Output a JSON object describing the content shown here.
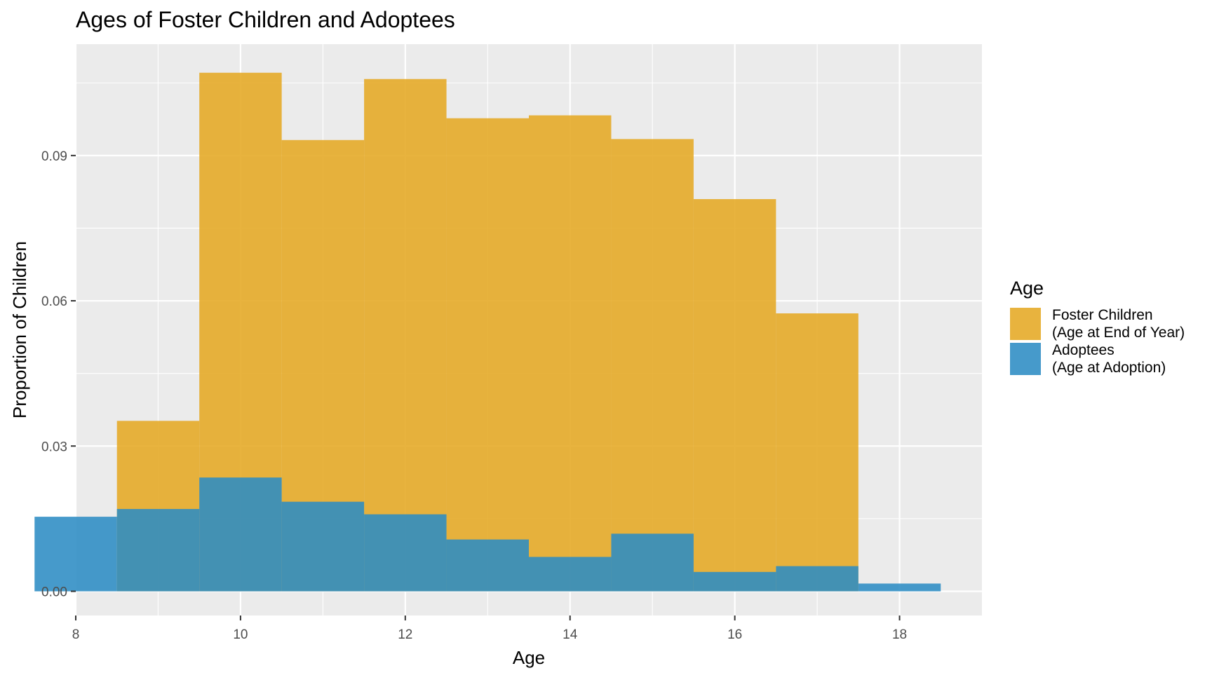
{
  "chart_data": {
    "type": "bar",
    "title": "Ages of Foster Children and Adoptees",
    "xlabel": "Age",
    "ylabel": "Proportion of Children",
    "xlim": [
      8,
      19
    ],
    "ylim": [
      -0.005,
      0.113
    ],
    "x_ticks": [
      "8",
      "10",
      "12",
      "14",
      "16",
      "18"
    ],
    "y_ticks": [
      "0.00",
      "0.03",
      "0.06",
      "0.09"
    ],
    "grid": true,
    "legend": {
      "title": "Age",
      "position": "right",
      "entries": [
        {
          "label": "Foster Children\n(Age at End of Year)",
          "color": "#e5a823"
        },
        {
          "label": "Adoptees\n(Age at Adoption)",
          "color": "#2c8cc4"
        }
      ]
    },
    "series": [
      {
        "name": "Foster Children\n(Age at End of Year)",
        "color": "#e5a823",
        "bins": [
          [
            8.5,
            9.5,
            0.0352
          ],
          [
            9.5,
            10.5,
            0.1071
          ],
          [
            10.5,
            11.5,
            0.0932
          ],
          [
            11.5,
            12.5,
            0.1058
          ],
          [
            12.5,
            13.5,
            0.0977
          ],
          [
            13.5,
            14.5,
            0.0983
          ],
          [
            14.5,
            15.5,
            0.0934
          ],
          [
            15.5,
            16.5,
            0.081
          ],
          [
            16.5,
            17.5,
            0.0574
          ]
        ]
      },
      {
        "name": "Adoptees\n(Age at Adoption)",
        "color": "#2c8cc4",
        "bins": [
          [
            7.5,
            8.5,
            0.0154
          ],
          [
            8.5,
            9.5,
            0.017
          ],
          [
            9.5,
            10.5,
            0.0235
          ],
          [
            10.5,
            11.5,
            0.0185
          ],
          [
            11.5,
            12.5,
            0.0159
          ],
          [
            12.5,
            13.5,
            0.0107
          ],
          [
            13.5,
            14.5,
            0.0071
          ],
          [
            14.5,
            15.5,
            0.0119
          ],
          [
            15.5,
            16.5,
            0.004
          ],
          [
            16.5,
            17.5,
            0.0052
          ],
          [
            17.5,
            18.5,
            0.0016
          ]
        ]
      }
    ]
  }
}
